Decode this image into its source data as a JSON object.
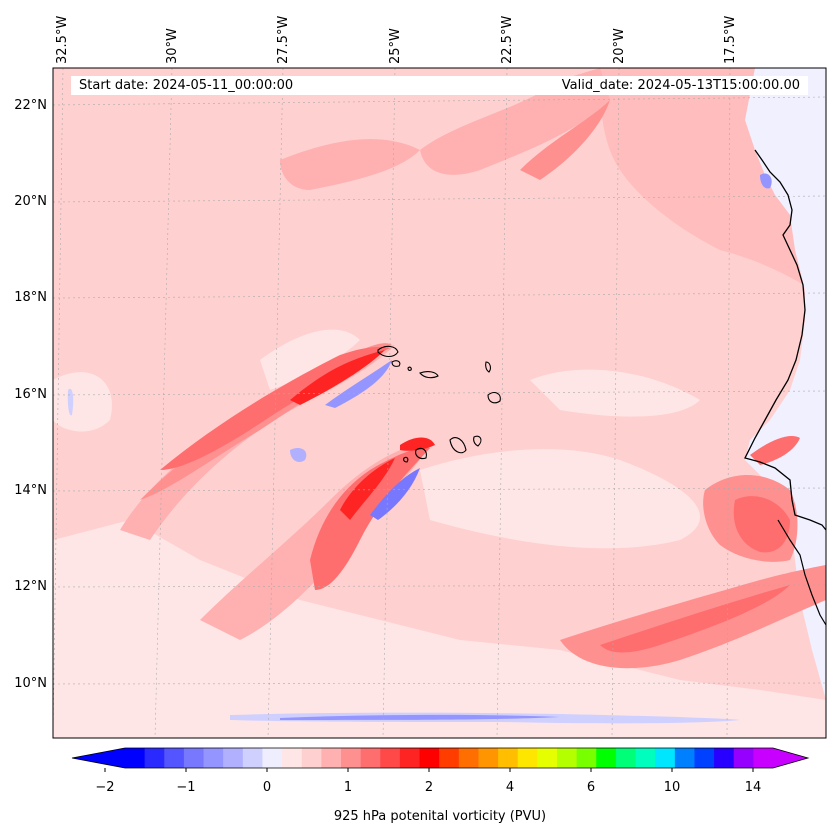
{
  "map": {
    "start_label": "Start date: 2024-05-11_00:00:00",
    "valid_label": "Valid_date: 2024-05-13T15:00:00.00",
    "longitude_labels": [
      "32.5°W",
      "30°W",
      "27.5°W",
      "25°W",
      "22.5°W",
      "20°W",
      "17.5°W"
    ],
    "latitude_labels": [
      "22°N",
      "20°N",
      "18°N",
      "16°N",
      "14°N",
      "12°N",
      "10°N"
    ],
    "region": "Cape Verde Islands and West African coast (Senegal, Gambia, Guinea-Bissau)",
    "colors": {
      "land_bg": "#f0f0ff",
      "coast": "#000000"
    }
  },
  "colorbar": {
    "label": "925 hPa potenital vorticity (PVU)",
    "ticks": [
      "−2",
      "−1",
      "0",
      "1",
      "2",
      "4",
      "6",
      "10",
      "14"
    ],
    "colors": [
      "#0000ff",
      "#2a2aff",
      "#5555ff",
      "#7878ff",
      "#9595ff",
      "#b0b0ff",
      "#d0d0ff",
      "#eeeeff",
      "#ffe6e6",
      "#ffd0d0",
      "#ffb0b0",
      "#ff9090",
      "#ff6e6e",
      "#ff4848",
      "#ff2424",
      "#ff0000",
      "#ff3d00",
      "#ff6e00",
      "#ff9500",
      "#ffbe00",
      "#ffe600",
      "#e6ff00",
      "#b4ff00",
      "#78ff00",
      "#00ff00",
      "#00ff78",
      "#00ffbe",
      "#00e6ff",
      "#0080ff",
      "#0040ff",
      "#2800ff",
      "#9600ff",
      "#c800ff"
    ],
    "extend_low_color": "#0000ff",
    "extend_high_color": "#c800ff"
  }
}
